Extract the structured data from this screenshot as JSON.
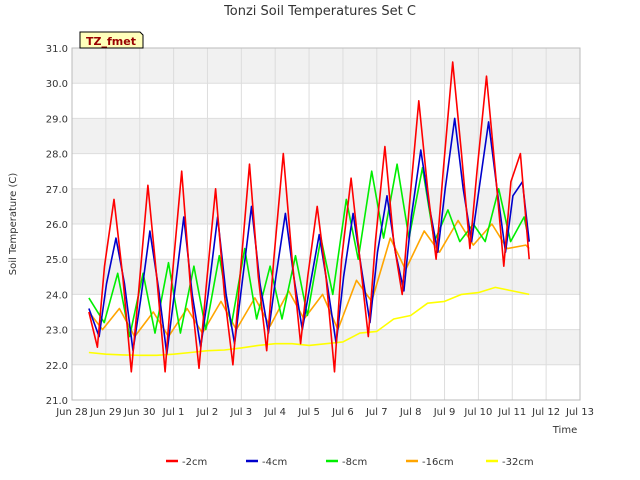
{
  "chart_data": {
    "type": "line",
    "title": "Tonzi Soil Temperatures Set C",
    "xlabel": "Time",
    "ylabel": "Soil Temperature (C)",
    "annotation": "TZ_fmet",
    "xlim_days": [
      0,
      15
    ],
    "xtick_days": [
      0,
      1,
      2,
      3,
      4,
      5,
      6,
      7,
      8,
      9,
      10,
      11,
      12,
      13,
      14,
      15
    ],
    "xtick_labels": [
      "Jun 28",
      "Jun 29",
      "Jun 30",
      "Jul 1",
      "Jul 2",
      "Jul 3",
      "Jul 4",
      "Jul 5",
      "Jul 6",
      "Jul 7",
      "Jul 8",
      "Jul 9",
      "Jul 10",
      "Jul 11",
      "Jul 12",
      "Jul 13"
    ],
    "ylim": [
      21.0,
      31.0
    ],
    "yticks": [
      21.0,
      22.0,
      23.0,
      24.0,
      25.0,
      26.0,
      27.0,
      28.0,
      29.0,
      30.0,
      31.0
    ],
    "ytick_labels": [
      "21.0",
      "22.0",
      "23.0",
      "24.0",
      "25.0",
      "26.0",
      "27.0",
      "28.0",
      "29.0",
      "30.0",
      "31.0"
    ],
    "grid": true,
    "legend_position": "bottom",
    "series": [
      {
        "name": "-2cm",
        "color": "#ff0000",
        "x": [
          0.5,
          0.75,
          0.96,
          1.24,
          1.5,
          1.75,
          1.96,
          2.24,
          2.5,
          2.75,
          2.96,
          3.24,
          3.5,
          3.75,
          3.96,
          4.24,
          4.5,
          4.75,
          4.96,
          5.24,
          5.5,
          5.75,
          5.96,
          6.24,
          6.5,
          6.75,
          6.96,
          7.24,
          7.5,
          7.75,
          7.96,
          8.24,
          8.5,
          8.75,
          8.96,
          9.24,
          9.5,
          9.75,
          9.96,
          10.24,
          10.5,
          10.75,
          10.96,
          11.24,
          11.5,
          11.75,
          11.96,
          12.24,
          12.5,
          12.75,
          12.96,
          13.24,
          13.5
        ],
        "y": [
          23.5,
          22.5,
          24.8,
          26.7,
          24.5,
          21.8,
          24.0,
          27.1,
          24.5,
          21.8,
          24.5,
          27.5,
          24.2,
          21.9,
          24.2,
          27.0,
          24.0,
          22.0,
          24.5,
          27.7,
          24.5,
          22.4,
          25.0,
          28.0,
          25.0,
          22.6,
          24.5,
          26.5,
          24.5,
          21.8,
          25.0,
          27.3,
          25.0,
          22.8,
          25.5,
          28.2,
          25.5,
          24.0,
          26.5,
          29.5,
          27.0,
          25.0,
          27.5,
          30.6,
          28.0,
          25.3,
          27.5,
          30.2,
          27.5,
          24.8,
          27.2,
          28.0,
          25.0
        ]
      },
      {
        "name": "-4cm",
        "color": "#0000cc",
        "x": [
          0.5,
          0.8,
          1.02,
          1.3,
          1.55,
          1.8,
          2.02,
          2.3,
          2.55,
          2.8,
          3.02,
          3.3,
          3.55,
          3.8,
          4.02,
          4.3,
          4.55,
          4.8,
          5.02,
          5.3,
          5.55,
          5.8,
          6.02,
          6.3,
          6.55,
          6.8,
          7.02,
          7.3,
          7.55,
          7.8,
          8.02,
          8.3,
          8.55,
          8.8,
          9.02,
          9.3,
          9.55,
          9.8,
          10.02,
          10.3,
          10.55,
          10.8,
          11.02,
          11.3,
          11.55,
          11.8,
          12.02,
          12.3,
          12.55,
          12.8,
          13.02,
          13.3,
          13.5
        ],
        "y": [
          23.6,
          22.8,
          24.3,
          25.6,
          24.3,
          22.4,
          23.8,
          25.8,
          24.2,
          22.3,
          24.0,
          26.2,
          24.0,
          22.5,
          24.0,
          26.2,
          24.0,
          22.6,
          24.3,
          26.5,
          24.3,
          22.9,
          24.5,
          26.3,
          24.5,
          23.0,
          24.2,
          25.7,
          24.2,
          22.6,
          24.5,
          26.3,
          24.7,
          23.2,
          25.2,
          26.8,
          25.2,
          24.1,
          26.2,
          28.1,
          26.5,
          25.2,
          27.0,
          29.0,
          27.0,
          25.5,
          27.0,
          28.9,
          27.0,
          25.2,
          26.8,
          27.2,
          25.5
        ]
      },
      {
        "name": "-8cm",
        "color": "#00ee00",
        "x": [
          0.5,
          0.95,
          1.35,
          1.7,
          2.1,
          2.45,
          2.85,
          3.2,
          3.6,
          3.95,
          4.35,
          4.7,
          5.1,
          5.45,
          5.85,
          6.2,
          6.6,
          6.95,
          7.35,
          7.7,
          8.1,
          8.45,
          8.85,
          9.2,
          9.6,
          9.95,
          10.35,
          10.7,
          11.1,
          11.45,
          11.85,
          12.2,
          12.6,
          12.95,
          13.35,
          13.5
        ],
        "y": [
          23.9,
          23.2,
          24.6,
          22.8,
          24.6,
          22.9,
          24.9,
          22.9,
          24.8,
          23.0,
          25.1,
          23.1,
          25.3,
          23.3,
          24.8,
          23.3,
          25.1,
          23.4,
          25.6,
          24.0,
          26.7,
          25.0,
          27.5,
          25.6,
          27.7,
          25.6,
          27.6,
          25.5,
          26.4,
          25.5,
          26.0,
          25.5,
          27.0,
          25.5,
          26.2,
          25.5
        ]
      },
      {
        "name": "-16cm",
        "color": "#ffa500",
        "x": [
          0.5,
          0.9,
          1.4,
          1.85,
          2.4,
          2.85,
          3.4,
          3.85,
          4.4,
          4.85,
          5.4,
          5.85,
          6.4,
          6.85,
          7.4,
          7.85,
          8.4,
          8.85,
          9.4,
          9.85,
          10.4,
          10.85,
          11.4,
          11.85,
          12.4,
          12.85,
          13.4,
          13.5
        ],
        "y": [
          23.5,
          23.0,
          23.6,
          22.8,
          23.5,
          22.8,
          23.6,
          22.9,
          23.8,
          23.0,
          23.9,
          23.1,
          24.1,
          23.3,
          24.0,
          23.0,
          24.4,
          23.8,
          25.6,
          24.7,
          25.8,
          25.2,
          26.1,
          25.4,
          26.0,
          25.3,
          25.4,
          25.3
        ]
      },
      {
        "name": "-32cm",
        "color": "#ffff00",
        "x": [
          0.5,
          1.0,
          1.5,
          2.0,
          2.5,
          3.0,
          3.5,
          4.0,
          4.5,
          5.0,
          5.5,
          6.0,
          6.5,
          7.0,
          7.5,
          8.0,
          8.5,
          9.0,
          9.5,
          10.0,
          10.5,
          11.0,
          11.5,
          12.0,
          12.5,
          13.0,
          13.5
        ],
        "y": [
          22.35,
          22.3,
          22.28,
          22.27,
          22.27,
          22.3,
          22.35,
          22.4,
          22.42,
          22.48,
          22.55,
          22.6,
          22.6,
          22.55,
          22.6,
          22.65,
          22.9,
          22.95,
          23.3,
          23.4,
          23.75,
          23.8,
          24.0,
          24.05,
          24.2,
          24.1,
          24.0
        ]
      }
    ]
  }
}
